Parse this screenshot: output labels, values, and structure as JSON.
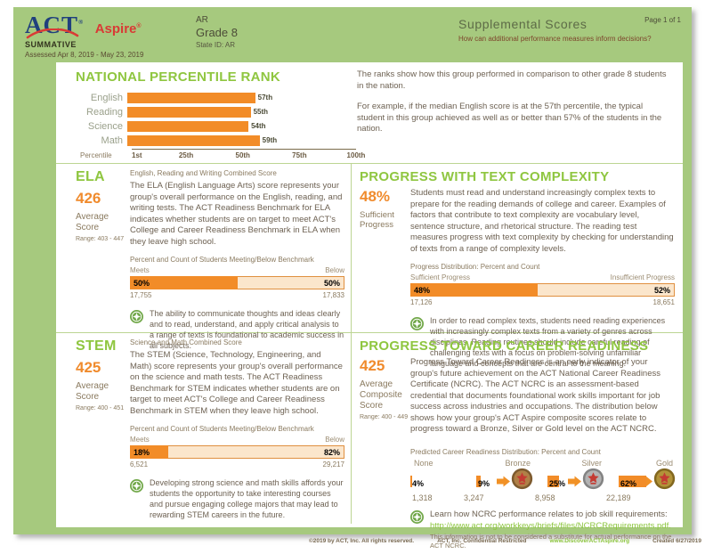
{
  "header": {
    "logo_act": "ACT",
    "logo_aspire": "Aspire",
    "summative": "SUMMATIVE",
    "assessed": "Assessed Apr 8, 2019 - May 23, 2019",
    "org_line1": "AR",
    "org_line2": "Grade 8",
    "org_line3": "State ID: AR",
    "title": "Supplemental Scores",
    "subtitle": "How can additional performance measures inform decisions?",
    "page": "Page 1 of 1"
  },
  "npr": {
    "title": "NATIONAL PERCENTILE RANK",
    "description_p1": "The ranks show how this group performed in comparison to other grade 8 students in the nation.",
    "description_p2": "For example, if the median English score is at the 57th percentile, the typical student in this group achieved as well as or better than 57% of the students in the nation."
  },
  "ela": {
    "title": "ELA",
    "score": "426",
    "score_label": "Average Score",
    "range": "Range: 403 - 447",
    "subtitle": "English, Reading and Writing Combined Score",
    "description": "The ELA (English Language Arts) score represents your group's overall performance on the English, reading, and writing tests. The ACT Readiness Benchmark for ELA indicates whether students are on target to meet ACT's College and Career Readiness Benchmark in ELA when they leave high school.",
    "bar_title": "Percent and Count of Students Meeting/Below Benchmark",
    "meets_label": "Meets",
    "below_label": "Below",
    "meets_pct": "50%",
    "below_pct": "50%",
    "meets_value": 50,
    "meets_count": "17,755",
    "below_count": "17,833",
    "note": "The ability to communicate thoughts and ideas clearly and to read, understand, and apply critical analysis to a range of texts is foundational to academic success in all subjects."
  },
  "text_complexity": {
    "title": "PROGRESS WITH TEXT COMPLEXITY",
    "score": "48%",
    "score_label": "Sufficient Progress",
    "description": "Students must read and understand increasingly complex texts to prepare for the reading demands of college and career. Examples of factors that contribute to text complexity are vocabulary level, sentence structure, and rhetorical structure. The reading test measures progress with text complexity by checking for understanding of texts from a range of complexity levels.",
    "bar_title": "Progress Distribution: Percent and Count",
    "left_label": "Sufficient Progress",
    "right_label": "Insufficient Progress",
    "left_pct": "48%",
    "right_pct": "52%",
    "left_value": 48,
    "left_count": "17,126",
    "right_count": "18,651",
    "note": "In order to read complex texts, students need reading experiences with increasingly complex texts from a variety of genres across disciplines. Reading routines should include careful reading of challenging texts with a focus on problem-solving unfamiliar language and concepts that are central to the meaning."
  },
  "stem": {
    "title": "STEM",
    "score": "425",
    "score_label": "Average Score",
    "range": "Range: 400 - 451",
    "subtitle": "Science and Math Combined Score",
    "description": "The STEM (Science, Technology, Engineering, and Math) score represents your group's overall performance on the science and math tests. The ACT Readiness Benchmark for STEM indicates whether students are on target to meet ACT's College and Career Readiness Benchmark in STEM when they leave high school.",
    "bar_title": "Percent and Count of Students Meeting/Below Benchmark",
    "meets_label": "Meets",
    "below_label": "Below",
    "meets_pct": "18%",
    "below_pct": "82%",
    "meets_value": 18,
    "meets_count": "6,521",
    "below_count": "29,217",
    "note": "Developing strong science and math skills affords your students the opportunity to take interesting courses and pursue engaging college majors that may lead to rewarding STEM careers in the future."
  },
  "career": {
    "title": "PROGRESS TOWARD CAREER READINESS",
    "score": "425",
    "score_label": "Average Composite Score",
    "range": "Range: 400 - 449",
    "description": "Progress Toward Career Readiness is an early indicator of your group's future achievement on the ACT National Career Readiness Certificate (NCRC). The ACT NCRC is an assessment-based credential that documents foundational work skills important for job success across industries and occupations. The distribution below shows how your group's ACT Aspire composite scores relate to progress toward a Bronze, Silver or Gold level on the ACT NCRC.",
    "dist_title": "Predicted Career Readiness Distribution: Percent and Count",
    "levels": [
      {
        "label": "None",
        "pct": "4%",
        "value": 4,
        "count": "1,318",
        "medal": false
      },
      {
        "label": "Bronze",
        "pct": "9%",
        "value": 9,
        "count": "3,247",
        "medal": true,
        "colors": {
          "base": "#b08047",
          "ring": "#7d5a2e"
        }
      },
      {
        "label": "Silver",
        "pct": "25%",
        "value": 25,
        "count": "8,958",
        "medal": true,
        "colors": {
          "base": "#b3b3b3",
          "ring": "#838383"
        }
      },
      {
        "label": "Gold",
        "pct": "62%",
        "value": 62,
        "count": "22,189",
        "medal": true,
        "colors": {
          "base": "#b29339",
          "ring": "#82671f"
        }
      }
    ],
    "note_line1": "Learn how NCRC performance relates to job skill requirements:",
    "note_link": "http://www.act.org/workkeys/briefs/files/NCRCRequirements.pdf.",
    "note_disclaimer": "This information is not to be considered a substitute for actual performance on the ACT NCRC."
  },
  "footer": {
    "copyright": "©2019 by ACT, Inc. All rights reserved.",
    "confidential": "ACT, Inc. Confidential Restricted",
    "website": "www.DiscoverACTAspire.org",
    "created": "Created 6/27/2019"
  },
  "colors": {
    "accent_orange": "#f28c28",
    "brand_green": "#8fc640",
    "background_green": "#a6c97e",
    "bar_light": "#fbe6cc",
    "link_green": "#8dc63f"
  },
  "chart_data": [
    {
      "type": "bar",
      "orientation": "horizontal",
      "title": "NATIONAL PERCENTILE RANK",
      "categories": [
        "English",
        "Reading",
        "Science",
        "Math"
      ],
      "values": [
        57,
        55,
        54,
        59
      ],
      "value_labels": [
        "57th",
        "55th",
        "54th",
        "59th"
      ],
      "xlabel": "Percentile",
      "x_ticks": [
        {
          "value": 1,
          "label": "1st"
        },
        {
          "value": 25,
          "label": "25th"
        },
        {
          "value": 50,
          "label": "50th"
        },
        {
          "value": 75,
          "label": "75th"
        },
        {
          "value": 100,
          "label": "100th"
        }
      ],
      "xlim": [
        1,
        100
      ],
      "grid": false,
      "legend": false
    },
    {
      "type": "bar",
      "title": "ELA: Percent and Count of Students Meeting/Below Benchmark",
      "categories": [
        "Meets",
        "Below"
      ],
      "values": [
        50,
        50
      ],
      "counts": [
        17755,
        17833
      ]
    },
    {
      "type": "bar",
      "title": "Progress with Text Complexity: Progress Distribution",
      "categories": [
        "Sufficient Progress",
        "Insufficient Progress"
      ],
      "values": [
        48,
        52
      ],
      "counts": [
        17126,
        18651
      ]
    },
    {
      "type": "bar",
      "title": "STEM: Percent and Count of Students Meeting/Below Benchmark",
      "categories": [
        "Meets",
        "Below"
      ],
      "values": [
        18,
        82
      ],
      "counts": [
        6521,
        29217
      ]
    },
    {
      "type": "bar",
      "title": "Predicted Career Readiness Distribution: Percent and Count",
      "categories": [
        "None",
        "Bronze",
        "Silver",
        "Gold"
      ],
      "values": [
        4,
        9,
        25,
        62
      ],
      "counts": [
        1318,
        3247,
        8958,
        22189
      ]
    }
  ]
}
